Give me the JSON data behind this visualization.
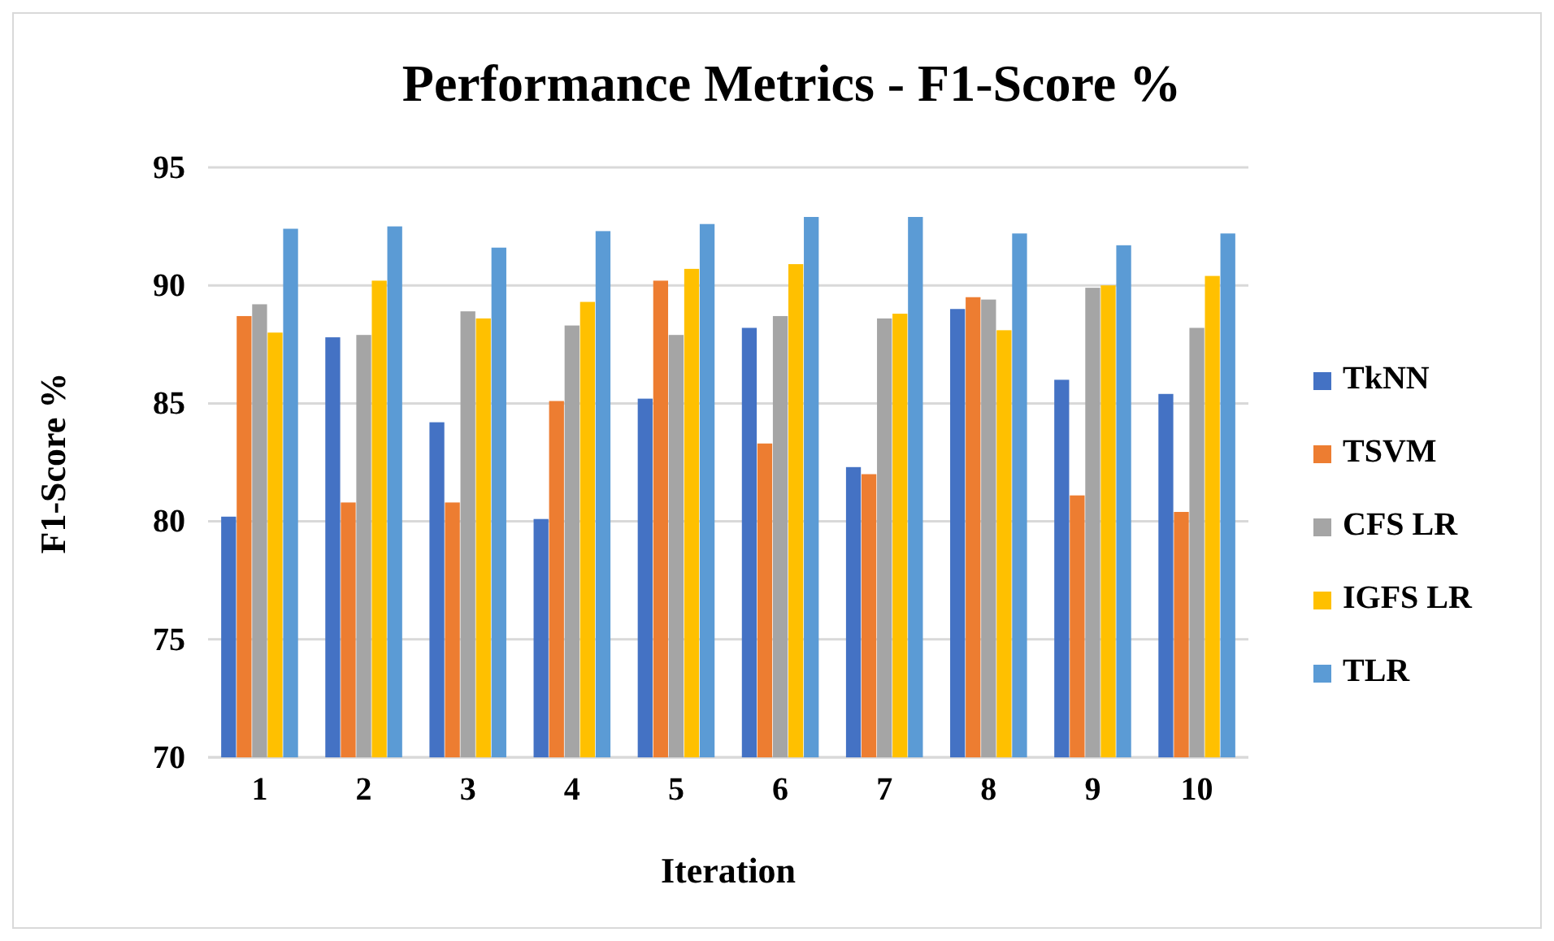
{
  "chart_data": {
    "type": "bar",
    "title": "Performance Metrics - F1-Score  %",
    "xlabel": "Iteration",
    "ylabel": "F1-Score %",
    "categories": [
      "1",
      "2",
      "3",
      "4",
      "5",
      "6",
      "7",
      "8",
      "9",
      "10"
    ],
    "series": [
      {
        "name": "TkNN",
        "color": "#4472c4",
        "values": [
          80.2,
          87.8,
          84.2,
          80.1,
          85.2,
          88.2,
          82.3,
          89.0,
          86.0,
          85.4
        ]
      },
      {
        "name": "TSVM",
        "color": "#ed7d31",
        "values": [
          88.7,
          80.8,
          80.8,
          85.1,
          90.2,
          83.3,
          82.0,
          89.5,
          81.1,
          80.4
        ]
      },
      {
        "name": "CFS LR",
        "color": "#a5a5a5",
        "values": [
          89.2,
          87.9,
          88.9,
          88.3,
          87.9,
          88.7,
          88.6,
          89.4,
          89.9,
          88.2
        ]
      },
      {
        "name": "IGFS LR",
        "color": "#ffc000",
        "values": [
          88.0,
          90.2,
          88.6,
          89.3,
          90.7,
          90.9,
          88.8,
          88.1,
          90.0,
          90.4
        ]
      },
      {
        "name": "TLR",
        "color": "#5b9bd5",
        "values": [
          92.4,
          92.5,
          91.6,
          92.3,
          92.6,
          92.9,
          92.9,
          92.2,
          91.7,
          92.2
        ]
      }
    ],
    "ylim": [
      70,
      95
    ],
    "yticks": [
      70,
      75,
      80,
      85,
      90,
      95
    ],
    "grid": "y",
    "legend": "right"
  }
}
